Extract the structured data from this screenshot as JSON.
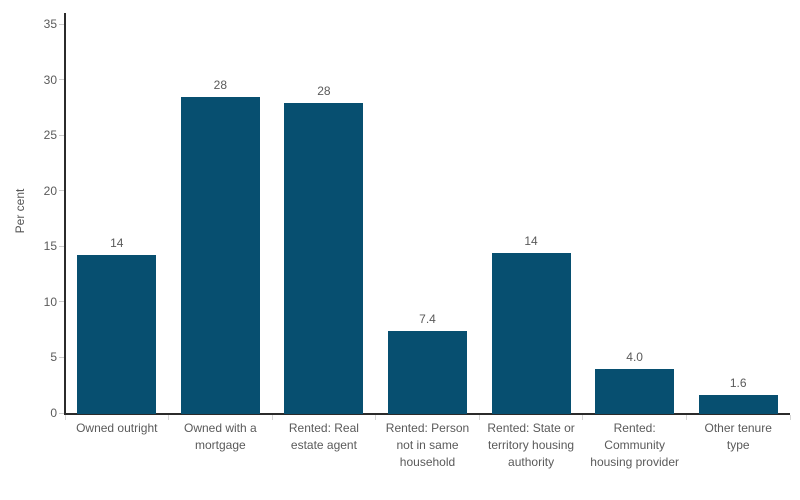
{
  "chart_data": {
    "type": "bar",
    "title": "",
    "xlabel": "",
    "ylabel": "Per cent",
    "ylim": [
      0,
      35
    ],
    "yticks": [
      0,
      5,
      10,
      15,
      20,
      25,
      30,
      35
    ],
    "grid": "off",
    "legend": "none",
    "categories": [
      "Owned outright",
      "Owned with a mortgage",
      "Rented: Real estate agent",
      "Rented: Person not in same household",
      "Rented: State or territory housing authority",
      "Rented: Community housing provider",
      "Other tenure type"
    ],
    "values": [
      14,
      28,
      28,
      7.4,
      14,
      4.0,
      1.6
    ],
    "bar_labels": [
      "14",
      "28",
      "28",
      "7.4",
      "14",
      "4.0",
      "1.6"
    ],
    "render_heights": [
      14.2,
      28.4,
      27.9,
      7.4,
      14.4,
      4.0,
      1.6
    ],
    "category_label_lines": [
      [
        "Owned outright"
      ],
      [
        "Owned with a",
        "mortgage"
      ],
      [
        "Rented: Real",
        "estate agent"
      ],
      [
        "Rented: Person",
        "not in same",
        "household"
      ],
      [
        "Rented: State or",
        "territory housing",
        "authority"
      ],
      [
        "Rented:",
        "Community",
        "housing provider"
      ],
      [
        "Other tenure",
        "type"
      ]
    ],
    "colors": {
      "bar": "#074f70",
      "axis_line": "#2b2b2b",
      "tick_mark": "#cdcdcd",
      "text": "#5a5a5a",
      "background": "#ffffff"
    }
  }
}
